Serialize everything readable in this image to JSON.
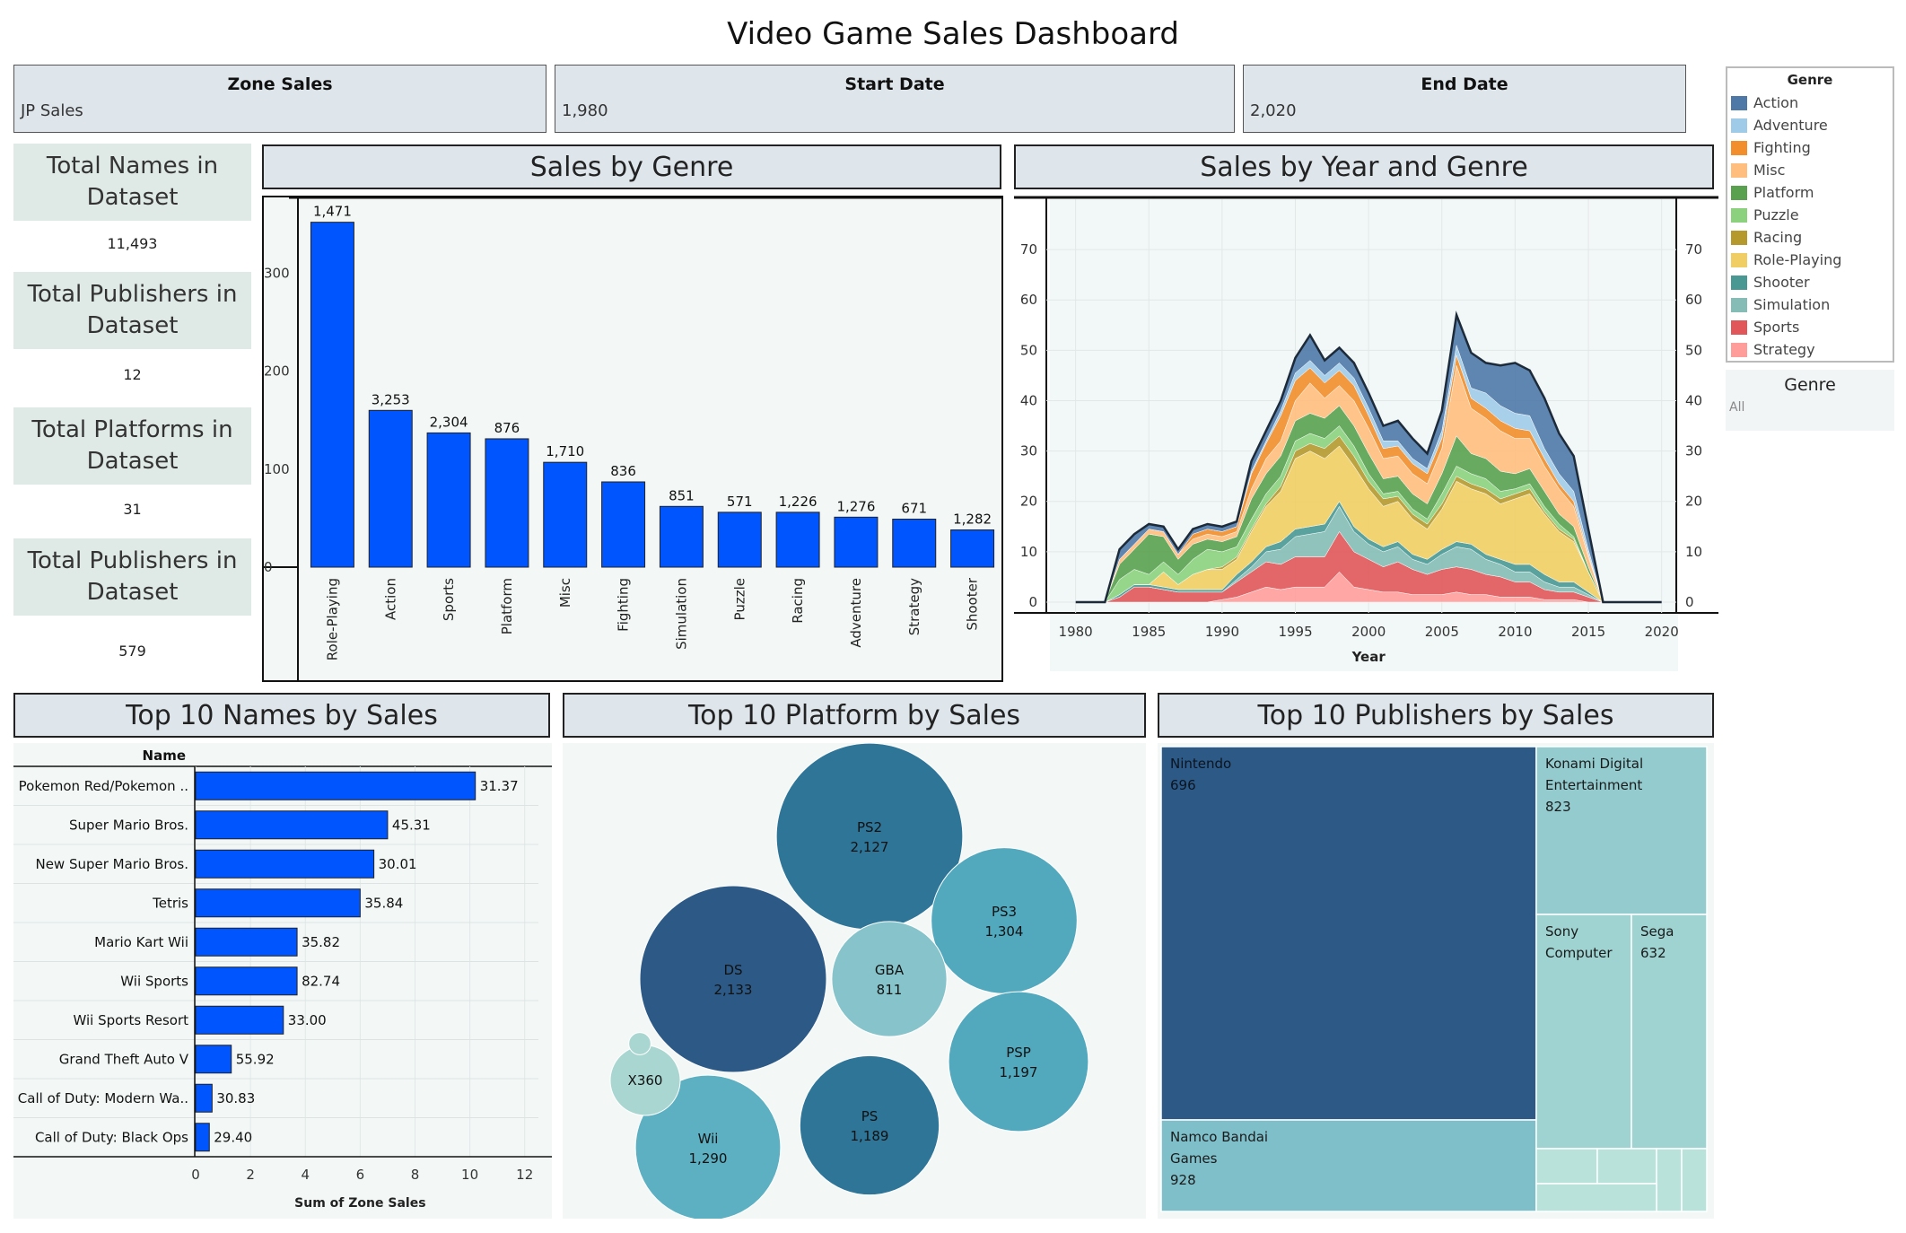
{
  "title": "Video Game Sales Dashboard",
  "filters": [
    {
      "label": "Zone Sales",
      "value": "JP Sales"
    },
    {
      "label": "Start Date",
      "value": "1,980"
    },
    {
      "label": "End Date",
      "value": "2,020"
    }
  ],
  "kpis": [
    {
      "label": "Total Names in Dataset",
      "value": "11,493"
    },
    {
      "label": "Total Publishers in Dataset",
      "value": "12"
    },
    {
      "label": "Total Platforms in Dataset",
      "value": "31"
    },
    {
      "label": "Total Publishers in Dataset",
      "value": "579"
    }
  ],
  "genre_legend": {
    "title": "Genre",
    "items": [
      {
        "name": "Action",
        "color": "#4e79a7"
      },
      {
        "name": "Adventure",
        "color": "#a0cbe8"
      },
      {
        "name": "Fighting",
        "color": "#f28e2b"
      },
      {
        "name": "Misc",
        "color": "#ffbe7d"
      },
      {
        "name": "Platform",
        "color": "#59a14f"
      },
      {
        "name": "Puzzle",
        "color": "#8cd17d"
      },
      {
        "name": "Racing",
        "color": "#b6992d"
      },
      {
        "name": "Role-Playing",
        "color": "#f1ce63"
      },
      {
        "name": "Shooter",
        "color": "#499894"
      },
      {
        "name": "Simulation",
        "color": "#86bcb6"
      },
      {
        "name": "Sports",
        "color": "#e15759"
      },
      {
        "name": "Strategy",
        "color": "#ff9d9a"
      }
    ]
  },
  "genre_filter": {
    "title": "Genre",
    "value": "All"
  },
  "panels": {
    "sales_by_genre": "Sales by Genre",
    "sales_by_year": "Sales by Year and Genre",
    "top_names": "Top 10 Names by Sales",
    "top_platforms": "Top 10 Platform by Sales",
    "top_publishers": "Top 10 Publishers by Sales"
  },
  "chart_data": [
    {
      "id": "sales_by_genre",
      "type": "bar",
      "title": "Sales by Genre",
      "categories": [
        "Role-Playing",
        "Action",
        "Sports",
        "Platform",
        "Misc",
        "Fighting",
        "Simulation",
        "Puzzle",
        "Racing",
        "Adventure",
        "Strategy",
        "Shooter"
      ],
      "values": [
        352,
        160,
        137,
        131,
        107,
        87,
        62,
        56,
        56,
        51,
        49,
        38
      ],
      "data_labels": [
        "1,471",
        "3,253",
        "2,304",
        "876",
        "1,710",
        "836",
        "851",
        "571",
        "1,226",
        "1,276",
        "671",
        "1,282"
      ],
      "yticks": [
        0,
        100,
        200,
        300
      ],
      "ylim": [
        0,
        370
      ],
      "color": "#0055ff"
    },
    {
      "id": "sales_by_year",
      "type": "area",
      "title": "Sales by Year and Genre",
      "xlabel": "Year",
      "ylim": [
        0,
        75
      ],
      "xlim": [
        1978,
        2021
      ],
      "xticks": [
        1980,
        1985,
        1990,
        1995,
        2000,
        2005,
        2010,
        2015,
        2020
      ],
      "yticks": [
        0,
        10,
        20,
        30,
        40,
        50,
        60,
        70
      ],
      "stacked": true,
      "x": [
        1980,
        1981,
        1982,
        1983,
        1984,
        1985,
        1986,
        1987,
        1988,
        1989,
        1990,
        1991,
        1992,
        1993,
        1994,
        1995,
        1996,
        1997,
        1998,
        1999,
        2000,
        2001,
        2002,
        2003,
        2004,
        2005,
        2006,
        2007,
        2008,
        2009,
        2010,
        2011,
        2012,
        2013,
        2014,
        2015,
        2016,
        2017,
        2018,
        2019,
        2020
      ],
      "series": [
        {
          "name": "Strategy",
          "values": [
            0,
            0,
            0,
            0,
            0,
            0,
            0,
            0,
            0,
            0,
            0.5,
            1,
            2,
            3,
            2.5,
            3,
            3,
            3,
            6,
            3,
            2.5,
            2,
            2,
            1.5,
            1.5,
            1.5,
            2,
            1.5,
            1.5,
            1,
            1,
            1,
            0.5,
            0.5,
            0.5,
            0,
            0,
            0,
            0,
            0,
            0
          ]
        },
        {
          "name": "Sports",
          "values": [
            0,
            0,
            0,
            1,
            3,
            3,
            2.5,
            2,
            2,
            2,
            1.5,
            3,
            4,
            5,
            5,
            6,
            6,
            6,
            8,
            7,
            6,
            5,
            6,
            5,
            4,
            5,
            5,
            5,
            4,
            4,
            3,
            3,
            2,
            1.5,
            1.5,
            1,
            0,
            0,
            0,
            0,
            0
          ]
        },
        {
          "name": "Simulation",
          "values": [
            0,
            0,
            0,
            0,
            0,
            0,
            0,
            0,
            0,
            0,
            0,
            0.5,
            1,
            2,
            3,
            4,
            4.5,
            5,
            5,
            4,
            3,
            3,
            3,
            2,
            2,
            3,
            4,
            4,
            3,
            2.5,
            2,
            2,
            1.5,
            1,
            1,
            0.5,
            0,
            0,
            0,
            0,
            0
          ]
        },
        {
          "name": "Shooter",
          "values": [
            0,
            0,
            0,
            0.5,
            0.5,
            0.5,
            0.5,
            0.5,
            0.5,
            0.5,
            0.5,
            1,
            1,
            1,
            1.5,
            1.5,
            1.5,
            1.5,
            1,
            1,
            1,
            1,
            1,
            1,
            1,
            1,
            1,
            1,
            1,
            1,
            1.5,
            1.5,
            1.5,
            1,
            1,
            0.5,
            0,
            0,
            0,
            0,
            0
          ]
        },
        {
          "name": "Role-Playing",
          "values": [
            0,
            0,
            0,
            0,
            0,
            0,
            3,
            1,
            3,
            4,
            4,
            3,
            6,
            8,
            10,
            14,
            15,
            13,
            11,
            12,
            10,
            8,
            8,
            7,
            6,
            8,
            12,
            11,
            12,
            11,
            13,
            14,
            12,
            10,
            8,
            4,
            0,
            0,
            0,
            0,
            0
          ]
        },
        {
          "name": "Racing",
          "values": [
            0,
            0,
            0,
            0,
            0,
            0,
            0,
            0,
            0,
            0,
            0.5,
            0.5,
            0.5,
            0.5,
            1,
            1.5,
            1.5,
            2,
            2,
            2,
            1.5,
            1.5,
            1,
            1,
            1,
            1,
            1,
            1,
            1,
            1,
            1,
            1,
            0.5,
            0.5,
            0.5,
            0,
            0,
            0,
            0,
            0,
            0
          ]
        },
        {
          "name": "Puzzle",
          "values": [
            0,
            0,
            0,
            3,
            3,
            2,
            2,
            2,
            3,
            4,
            3,
            2,
            2,
            2,
            2,
            2,
            2,
            2,
            2,
            2,
            1.5,
            1,
            1,
            1,
            1,
            2,
            2,
            2,
            2,
            1.5,
            1,
            1,
            1,
            1,
            0.5,
            0,
            0,
            0,
            0,
            0,
            0
          ]
        },
        {
          "name": "Platform",
          "values": [
            0,
            0,
            0,
            3,
            4,
            8,
            5,
            3,
            3,
            2,
            2,
            2,
            4,
            4,
            4,
            4,
            4,
            4,
            4,
            4,
            4,
            3,
            3,
            3,
            3,
            4,
            6,
            4,
            4,
            4,
            3,
            3,
            3,
            2,
            2,
            1,
            0,
            0,
            0,
            0,
            0
          ]
        },
        {
          "name": "Misc",
          "values": [
            0,
            0,
            0,
            1,
            1,
            1,
            1,
            1,
            1,
            1,
            1,
            1,
            2,
            3,
            3,
            4,
            6,
            4,
            4,
            5,
            5,
            4,
            4,
            4,
            4,
            5,
            14,
            9,
            8,
            8,
            7,
            6,
            5,
            5,
            4,
            2,
            0,
            0,
            0,
            0,
            0
          ]
        },
        {
          "name": "Fighting",
          "values": [
            0,
            0,
            0,
            0,
            0,
            0,
            0,
            0,
            1,
            1,
            1,
            1,
            3,
            3,
            5,
            4,
            3,
            3,
            3,
            3,
            2.5,
            2,
            2,
            2,
            2,
            2,
            2,
            2,
            2,
            2,
            2,
            1.5,
            1.5,
            1,
            1,
            0.5,
            0,
            0,
            0,
            0,
            0
          ]
        },
        {
          "name": "Adventure",
          "values": [
            0,
            0,
            0,
            0,
            0,
            0,
            0,
            0,
            0,
            0,
            0,
            0,
            0.5,
            0.5,
            1,
            1.5,
            1.5,
            1.5,
            1.5,
            1.5,
            1.5,
            1.5,
            1,
            1,
            1,
            1.5,
            2,
            2,
            3,
            3,
            3,
            3,
            2,
            2,
            2,
            1,
            0,
            0,
            0,
            0,
            0
          ]
        },
        {
          "name": "Action",
          "values": [
            0,
            0,
            0,
            2,
            2,
            1,
            1,
            1,
            1,
            1,
            1,
            1,
            2,
            2,
            2,
            3,
            5,
            3,
            3,
            3,
            3,
            3,
            4,
            4,
            3,
            4,
            6,
            7,
            6,
            8,
            10,
            9,
            10,
            8,
            7,
            4,
            0,
            0,
            0,
            0,
            0
          ]
        }
      ]
    },
    {
      "id": "top_names",
      "type": "bar",
      "orientation": "horizontal",
      "title": "Top 10 Names by Sales",
      "column_header": "Name",
      "xlabel": "Sum of Zone Sales",
      "categories": [
        "Pokemon Red/Pokemon ..",
        "Super Mario Bros.",
        "New Super Mario Bros.",
        "Tetris",
        "Mario Kart Wii",
        "Wii Sports",
        "Wii Sports Resort",
        "Grand Theft Auto V",
        "Call of Duty: Modern Wa..",
        "Call of Duty: Black Ops"
      ],
      "values": [
        10.2,
        7.0,
        6.5,
        6.0,
        3.7,
        3.7,
        3.2,
        1.3,
        0.6,
        0.5
      ],
      "data_labels": [
        "31.37",
        "45.31",
        "30.01",
        "35.84",
        "35.82",
        "82.74",
        "33.00",
        "55.92",
        "30.83",
        "29.40"
      ],
      "xticks": [
        0,
        2,
        4,
        6,
        8,
        10,
        12
      ],
      "xlim": [
        0,
        12.5
      ],
      "color": "#0055ff"
    },
    {
      "id": "top_platforms",
      "type": "bubble",
      "title": "Top 10 Platform by Sales",
      "items": [
        {
          "name": "PS2",
          "label": "2,127",
          "value": 2127,
          "color": "#2e7598"
        },
        {
          "name": "DS",
          "label": "2,133",
          "value": 2133,
          "color": "#2c5985"
        },
        {
          "name": "PS",
          "label": "1,189",
          "value": 1189,
          "color": "#2e7598"
        },
        {
          "name": "PS3",
          "label": "1,304",
          "value": 1304,
          "color": "#52a8bd"
        },
        {
          "name": "PSP",
          "label": "1,197",
          "value": 1197,
          "color": "#52a8bd"
        },
        {
          "name": "Wii",
          "label": "1,290",
          "value": 1290,
          "color": "#5cb0c2"
        },
        {
          "name": "GBA",
          "label": "811",
          "value": 811,
          "color": "#86c3ca"
        },
        {
          "name": "X360",
          "label": "",
          "value": 300,
          "color": "#a9d6d1"
        },
        {
          "name": "",
          "label": "",
          "value": 30,
          "color": "#a9d6d1"
        }
      ]
    },
    {
      "id": "top_publishers",
      "type": "treemap",
      "title": "Top 10 Publishers by Sales",
      "items": [
        {
          "name": "Nintendo",
          "label": "696",
          "color": "#2c5985"
        },
        {
          "name": "Namco Bandai Games",
          "label": "928",
          "color": "#7fbfca"
        },
        {
          "name": "Konami Digital Entertainment",
          "label": "823",
          "color": "#93cbce"
        },
        {
          "name": "Sony Computer",
          "label": "",
          "color": "#9ed3d1"
        },
        {
          "name": "Sega",
          "label": "632",
          "color": "#9ed3d1"
        },
        {
          "name": "",
          "label": "",
          "color": "#b9e2da"
        },
        {
          "name": "",
          "label": "",
          "color": "#b9e2da"
        },
        {
          "name": "",
          "label": "",
          "color": "#b9e2da"
        },
        {
          "name": "",
          "label": "",
          "color": "#b9e2da"
        },
        {
          "name": "",
          "label": "",
          "color": "#b9e2da"
        }
      ]
    }
  ]
}
